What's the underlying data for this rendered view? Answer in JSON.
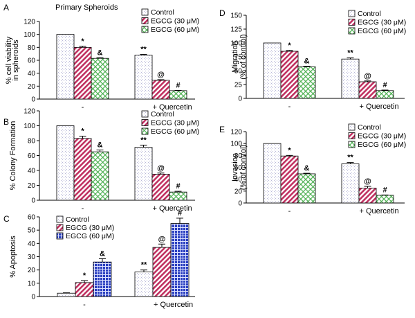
{
  "colors": {
    "control_fill": "#ffffff",
    "egcg30_fill": "#c03060",
    "egcg60_fill": "#4caf50",
    "egcg60_fill_blue": "#2a3fc0",
    "axis": "#000000"
  },
  "chart_data": [
    {
      "panel_label": "A",
      "type": "bar",
      "title": "Primary Spheroids",
      "ylabel_lines": [
        "% cell viability",
        "in spheroids"
      ],
      "ylim": [
        0,
        120
      ],
      "yticks": [
        0,
        20,
        40,
        60,
        80,
        100,
        120
      ],
      "categories": [
        "-",
        "+ Quercetin"
      ],
      "legend": [
        "Control",
        "EGCG (30 μM)",
        "EGCG (60 μM)"
      ],
      "series": [
        {
          "name": "Control",
          "values": [
            100,
            68
          ],
          "errors": [
            0,
            1
          ]
        },
        {
          "name": "EGCG (30 μM)",
          "values": [
            80,
            29
          ],
          "errors": [
            1.5,
            1
          ]
        },
        {
          "name": "EGCG (60 μM)",
          "values": [
            63,
            13
          ],
          "errors": [
            1,
            0.5
          ]
        }
      ],
      "annotations": [
        [
          "",
          "*",
          "&"
        ],
        [
          "**",
          "@",
          "#"
        ]
      ]
    },
    {
      "panel_label": "B",
      "type": "bar",
      "title": "",
      "ylabel_lines": [
        "% Colony Formation"
      ],
      "ylim": [
        0,
        120
      ],
      "yticks": [
        0,
        20,
        40,
        60,
        80,
        100,
        120
      ],
      "categories": [
        "-",
        "+ Quercetin"
      ],
      "legend": [
        "Control",
        "EGCG (30 μM)",
        "EGCG (60 μM)"
      ],
      "series": [
        {
          "name": "Control",
          "values": [
            100,
            71
          ],
          "errors": [
            0,
            3
          ]
        },
        {
          "name": "EGCG (30 μM)",
          "values": [
            83,
            35
          ],
          "errors": [
            3,
            1.5
          ]
        },
        {
          "name": "EGCG (60 μM)",
          "values": [
            65,
            11
          ],
          "errors": [
            2.5,
            1
          ]
        }
      ],
      "annotations": [
        [
          "",
          "*",
          "&"
        ],
        [
          "**",
          "@",
          "#"
        ]
      ]
    },
    {
      "panel_label": "C",
      "type": "bar",
      "title": "",
      "ylabel_lines": [
        "% Apoptosis"
      ],
      "ylim": [
        0,
        60
      ],
      "yticks": [
        0,
        10,
        20,
        30,
        40,
        50,
        60
      ],
      "categories": [
        "-",
        "+ Quercetin"
      ],
      "legend": [
        "Control",
        "EGCG (30 μM)",
        "EGCG (60 μM)"
      ],
      "series": [
        {
          "name": "Control",
          "values": [
            2.5,
            18.5
          ],
          "errors": [
            0.3,
            1.5
          ]
        },
        {
          "name": "EGCG (30 μM)",
          "values": [
            10.5,
            37
          ],
          "errors": [
            1.5,
            2.5
          ]
        },
        {
          "name": "EGCG (60 μM)",
          "values": [
            26,
            55
          ],
          "errors": [
            2.5,
            4
          ]
        }
      ],
      "annotations": [
        [
          "",
          "*",
          "&"
        ],
        [
          "**",
          "@",
          "#"
        ]
      ]
    },
    {
      "panel_label": "D",
      "type": "bar",
      "title": "",
      "ylabel_lines": [
        "Migration",
        "(% of control)"
      ],
      "ylim": [
        0,
        150
      ],
      "yticks": [
        0,
        25,
        50,
        75,
        100,
        125,
        150
      ],
      "categories": [
        "-",
        "+ Quercetin"
      ],
      "legend": [
        "Control",
        "EGCG (30 μM)",
        "EGCG (60 μM)"
      ],
      "series": [
        {
          "name": "Control",
          "values": [
            100,
            71
          ],
          "errors": [
            0,
            2
          ]
        },
        {
          "name": "EGCG (30 μM)",
          "values": [
            85,
            30
          ],
          "errors": [
            1.5,
            1.5
          ]
        },
        {
          "name": "EGCG (60 μM)",
          "values": [
            57,
            14
          ],
          "errors": [
            1,
            1
          ]
        }
      ],
      "annotations": [
        [
          "",
          "*",
          "&"
        ],
        [
          "**",
          "@",
          "#"
        ]
      ]
    },
    {
      "panel_label": "E",
      "type": "bar",
      "title": "",
      "ylabel_lines": [
        "Invasion",
        "(% of control)"
      ],
      "ylim": [
        0,
        120
      ],
      "yticks": [
        0,
        20,
        40,
        60,
        80,
        100,
        120
      ],
      "categories": [
        "-",
        "+ Quercetin"
      ],
      "legend": [
        "Control",
        "EGCG (30 μM)",
        "EGCG (60 μM)"
      ],
      "series": [
        {
          "name": "Control",
          "values": [
            100,
            66
          ],
          "errors": [
            0,
            2
          ]
        },
        {
          "name": "EGCG (30 μM)",
          "values": [
            79,
            25
          ],
          "errors": [
            1,
            3
          ]
        },
        {
          "name": "EGCG (60 μM)",
          "values": [
            49,
            13
          ],
          "errors": [
            1,
            0.5
          ]
        }
      ],
      "annotations": [
        [
          "",
          "*",
          "&"
        ],
        [
          "**",
          "@",
          "#"
        ]
      ]
    }
  ]
}
